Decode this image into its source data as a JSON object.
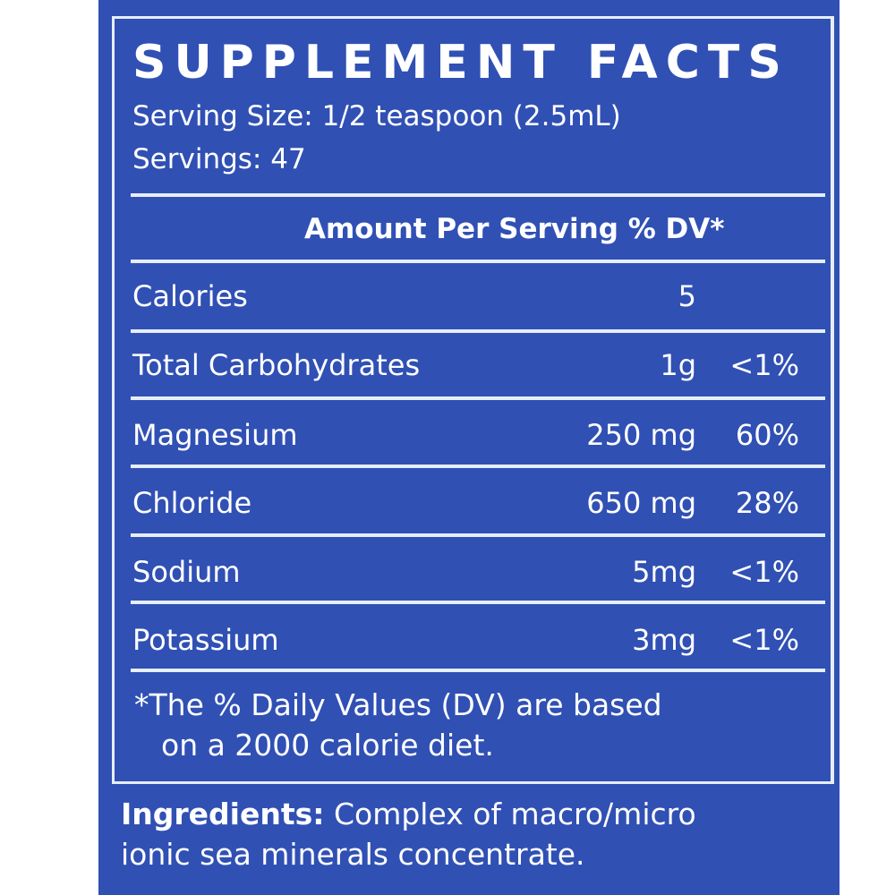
{
  "title": "SUPPLEMENT FACTS",
  "serving_size": "Serving Size: 1/2 teaspoon (2.5mL)",
  "servings": "Servings: 47",
  "header": "Amount Per Serving % DV*",
  "rows": [
    {
      "name": "Calories",
      "amount": "5",
      "dv": ""
    },
    {
      "name": "Total Carbohydrates",
      "amount": "1g",
      "dv": "<1%"
    },
    {
      "name": "Magnesium",
      "amount": "250 mg",
      "dv": "60%"
    },
    {
      "name": "Chloride",
      "amount": "650 mg",
      "dv": "28%"
    },
    {
      "name": "Sodium",
      "amount": "5mg",
      "dv": "<1%"
    },
    {
      "name": "Potassium",
      "amount": "3mg",
      "dv": "<1%"
    }
  ],
  "footnote": [
    "*The % Daily Values (DV) are based",
    "on a 2000 calorie diet."
  ],
  "ingredients": {
    "label": "Ingredients:",
    "text1": " Complex of macro/micro",
    "text2": "ionic sea minerals concentrate."
  },
  "colors": {
    "background": "#3050b4",
    "text": "#ffffff"
  }
}
